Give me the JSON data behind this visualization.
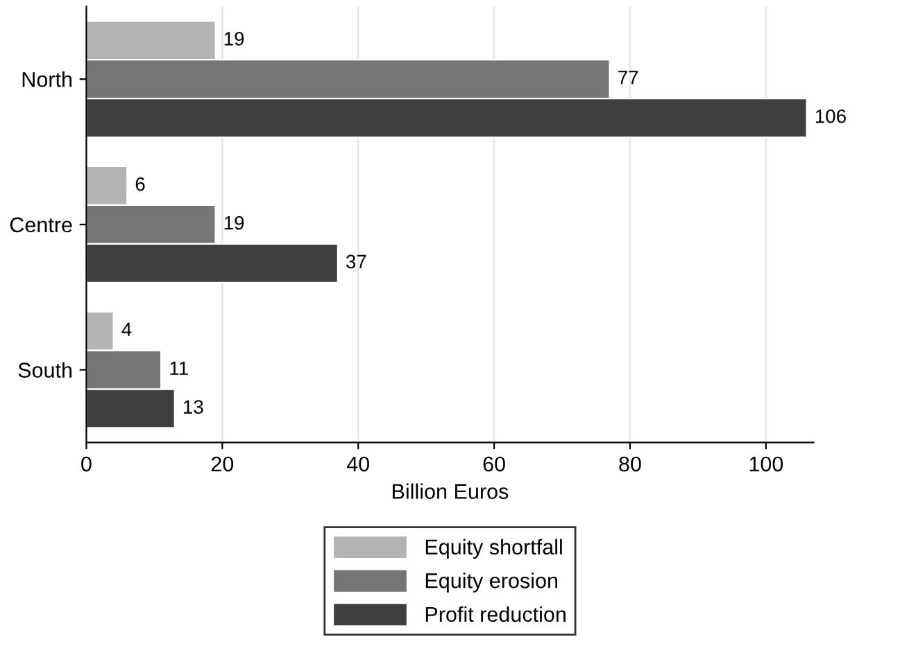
{
  "chart_data": {
    "type": "bar",
    "orientation": "horizontal",
    "xlabel": "Billion Euros",
    "categories": [
      "North",
      "Centre",
      "South"
    ],
    "series": [
      {
        "name": "Equity shortfall",
        "color": "#b3b3b3",
        "values": [
          19,
          6,
          4
        ]
      },
      {
        "name": "Equity erosion",
        "color": "#767676",
        "values": [
          77,
          19,
          11
        ]
      },
      {
        "name": "Profit reduction",
        "color": "#3f3f3f",
        "values": [
          106,
          37,
          13
        ]
      }
    ],
    "xlim": [
      0,
      107
    ],
    "xticks": [
      0,
      20,
      40,
      60,
      80,
      100
    ],
    "grid": "x",
    "legend": "bottom",
    "data_labels": true
  }
}
